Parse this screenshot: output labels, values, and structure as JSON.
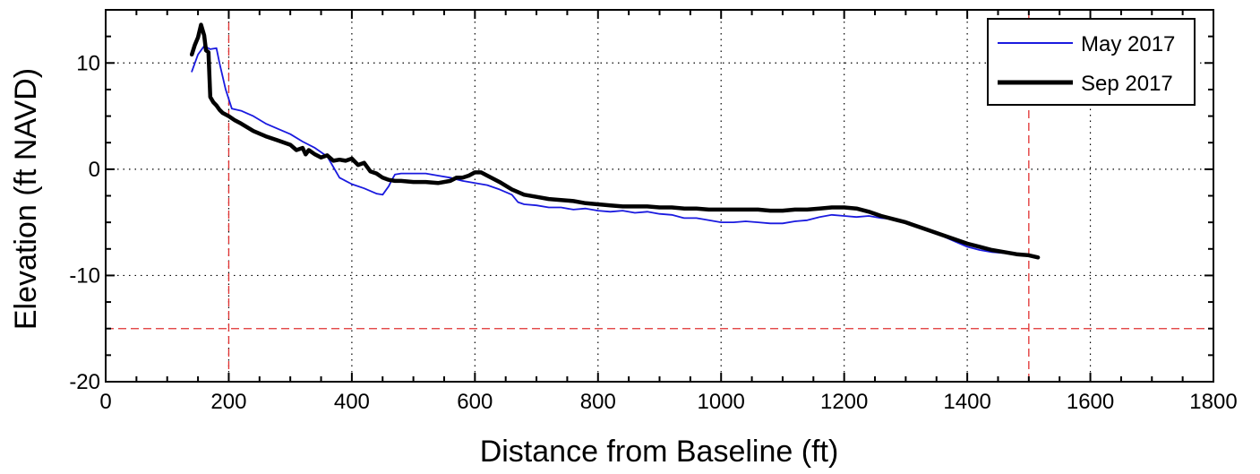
{
  "chart_data": {
    "type": "line",
    "title": "",
    "xlabel": "Distance from Baseline (ft)",
    "ylabel": "Elevation (ft NAVD)",
    "xlim": [
      0,
      1800
    ],
    "ylim": [
      -20,
      15
    ],
    "xticks": [
      0,
      200,
      400,
      600,
      800,
      1000,
      1200,
      1400,
      1600,
      1800
    ],
    "yticks": [
      -20,
      -10,
      0,
      10
    ],
    "grid": true,
    "legend_position": "top-right",
    "reference_lines": {
      "vertical_x": [
        200,
        1500
      ],
      "horizontal_y": [
        -15
      ],
      "color": "#e03030"
    },
    "series": [
      {
        "name": "May 2017",
        "color": "#1a1adf",
        "x": [
          140,
          150,
          160,
          170,
          180,
          185,
          195,
          205,
          220,
          240,
          260,
          280,
          300,
          320,
          340,
          360,
          370,
          380,
          390,
          400,
          420,
          440,
          450,
          460,
          465,
          470,
          480,
          500,
          520,
          540,
          560,
          580,
          600,
          620,
          640,
          660,
          670,
          680,
          700,
          720,
          740,
          760,
          780,
          800,
          820,
          840,
          860,
          880,
          900,
          920,
          940,
          960,
          980,
          1000,
          1020,
          1040,
          1060,
          1080,
          1100,
          1120,
          1140,
          1160,
          1180,
          1200,
          1220,
          1240,
          1260,
          1280,
          1300,
          1320,
          1340,
          1360,
          1380,
          1400,
          1420,
          1440,
          1460,
          1480,
          1500,
          1510
        ],
        "y": [
          9.2,
          10.8,
          11.6,
          11.3,
          11.4,
          10.0,
          7.5,
          5.7,
          5.5,
          5.0,
          4.3,
          3.8,
          3.3,
          2.6,
          2.0,
          1.2,
          0.2,
          -0.8,
          -1.1,
          -1.4,
          -1.8,
          -2.3,
          -2.4,
          -1.6,
          -1.0,
          -0.5,
          -0.4,
          -0.4,
          -0.4,
          -0.6,
          -0.8,
          -1.1,
          -1.3,
          -1.5,
          -1.9,
          -2.4,
          -3.1,
          -3.3,
          -3.4,
          -3.6,
          -3.6,
          -3.8,
          -3.7,
          -3.9,
          -4.0,
          -3.9,
          -4.1,
          -4.0,
          -4.2,
          -4.3,
          -4.6,
          -4.6,
          -4.8,
          -5.0,
          -5.0,
          -4.9,
          -5.0,
          -5.1,
          -5.1,
          -4.9,
          -4.8,
          -4.5,
          -4.3,
          -4.4,
          -4.5,
          -4.4,
          -4.6,
          -4.7,
          -4.9,
          -5.4,
          -5.9,
          -6.3,
          -6.8,
          -7.3,
          -7.6,
          -7.8,
          -7.9,
          -8.0,
          -8.1,
          -8.3
        ]
      },
      {
        "name": "Sep 2017",
        "color": "#000000",
        "x": [
          140,
          145,
          150,
          155,
          160,
          163,
          167,
          170,
          175,
          180,
          185,
          190,
          200,
          210,
          220,
          240,
          260,
          280,
          300,
          310,
          320,
          325,
          330,
          340,
          350,
          360,
          370,
          380,
          390,
          400,
          410,
          420,
          430,
          440,
          450,
          460,
          470,
          480,
          500,
          520,
          540,
          560,
          570,
          580,
          590,
          600,
          610,
          620,
          640,
          660,
          680,
          700,
          720,
          740,
          760,
          780,
          800,
          820,
          840,
          860,
          880,
          900,
          920,
          940,
          960,
          980,
          1000,
          1020,
          1040,
          1060,
          1080,
          1100,
          1120,
          1140,
          1160,
          1180,
          1200,
          1220,
          1240,
          1260,
          1280,
          1300,
          1320,
          1340,
          1360,
          1380,
          1400,
          1420,
          1440,
          1460,
          1480,
          1500,
          1515
        ],
        "y": [
          10.8,
          11.7,
          12.4,
          13.6,
          12.6,
          11.2,
          11.0,
          6.8,
          6.3,
          6.0,
          5.6,
          5.3,
          5.0,
          4.6,
          4.3,
          3.6,
          3.1,
          2.7,
          2.3,
          1.8,
          2.0,
          1.4,
          1.8,
          1.4,
          1.1,
          1.3,
          0.8,
          0.9,
          0.8,
          1.0,
          0.4,
          0.6,
          -0.2,
          -0.4,
          -0.8,
          -1.0,
          -1.1,
          -1.1,
          -1.2,
          -1.2,
          -1.3,
          -1.1,
          -0.8,
          -0.8,
          -0.6,
          -0.3,
          -0.3,
          -0.6,
          -1.2,
          -1.9,
          -2.4,
          -2.6,
          -2.8,
          -2.9,
          -3.0,
          -3.2,
          -3.3,
          -3.4,
          -3.5,
          -3.5,
          -3.5,
          -3.6,
          -3.6,
          -3.7,
          -3.7,
          -3.8,
          -3.8,
          -3.8,
          -3.8,
          -3.8,
          -3.9,
          -3.9,
          -3.8,
          -3.8,
          -3.7,
          -3.6,
          -3.6,
          -3.7,
          -4.0,
          -4.4,
          -4.7,
          -5.0,
          -5.4,
          -5.8,
          -6.2,
          -6.6,
          -7.0,
          -7.3,
          -7.6,
          -7.8,
          -8.0,
          -8.1,
          -8.3
        ]
      }
    ]
  }
}
